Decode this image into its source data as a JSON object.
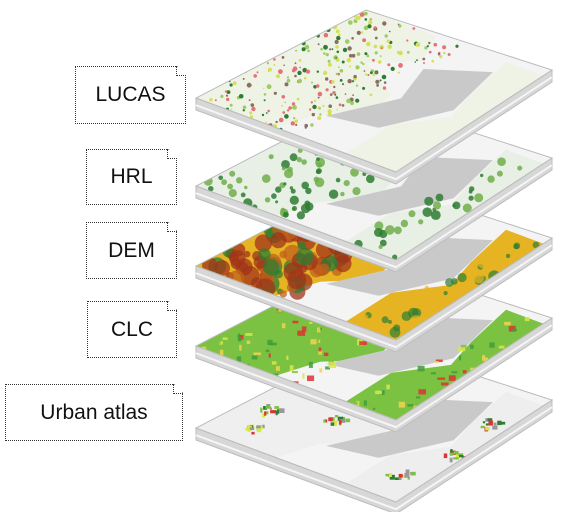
{
  "layers": [
    {
      "label": "LUCAS",
      "theme": "points"
    },
    {
      "label": "HRL",
      "theme": "forest"
    },
    {
      "label": "DEM",
      "theme": "elevation"
    },
    {
      "label": "CLC",
      "theme": "landcover"
    },
    {
      "label": "Urban atlas",
      "theme": "urban"
    }
  ],
  "colors": {
    "land_gray": "#c9c9c9",
    "sea": "#f4f4f4",
    "slab_edge": "#bdbdbd",
    "forest_dark": "#2e7d32",
    "forest_light": "#8bc34a",
    "dem_low": "#2e7d32",
    "dem_mid": "#e6b422",
    "dem_high": "#a0341a",
    "clc_green": "#7cc242",
    "clc_yellow": "#d8e84a",
    "urban_red": "#d33",
    "label_border": "#333333"
  }
}
